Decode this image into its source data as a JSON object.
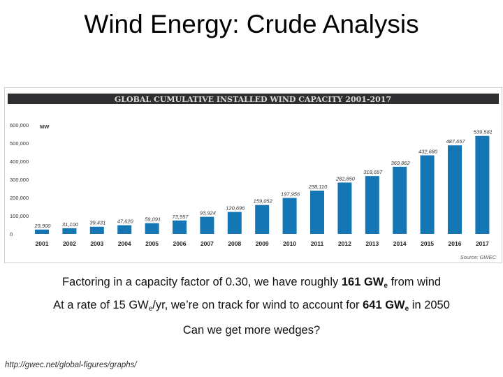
{
  "slide": {
    "title": "Wind Energy: Crude Analysis",
    "line1": {
      "pre": "Factoring in a capacity factor of 0.30, we have roughly ",
      "bold": "161 GW",
      "sub": "e",
      "post": " from wind"
    },
    "line2": {
      "pre": "At a rate of 15 GW",
      "sub1": "e",
      "mid": "/yr, we’re on track for wind to account for ",
      "bold": "641 GW",
      "sub2": "e",
      "post": " in 2050"
    },
    "line3": "Can we get more wedges?",
    "url": "http://gwec.net/global-figures/graphs/"
  },
  "colors": {
    "bar": "#1476b5",
    "banner": "#2f2f31",
    "banner_text": "#d9d9d9",
    "axis_text": "#333333"
  },
  "chart_data": {
    "type": "bar",
    "title": "GLOBAL CUMULATIVE INSTALLED WIND CAPACITY 2001-2017",
    "unit": "MW",
    "source": "Source: GWEC",
    "categories": [
      "2001",
      "2002",
      "2003",
      "2004",
      "2005",
      "2006",
      "2007",
      "2008",
      "2009",
      "2010",
      "2011",
      "2012",
      "2013",
      "2014",
      "2015",
      "2016",
      "2017"
    ],
    "values": [
      23900,
      31100,
      39431,
      47620,
      59091,
      73957,
      93924,
      120696,
      159052,
      197956,
      238110,
      282850,
      318697,
      369862,
      432680,
      487657,
      539581
    ],
    "value_labels": [
      "23,900",
      "31,100",
      "39,431",
      "47,620",
      "59,091",
      "73,957",
      "93,924",
      "120,696",
      "159,052",
      "197,956",
      "238,110",
      "282,850",
      "318,697",
      "369,862",
      "432,680",
      "487,657",
      "539,581"
    ],
    "y_ticks": [
      0,
      100000,
      200000,
      300000,
      400000,
      500000,
      600000
    ],
    "y_tick_labels": [
      "0",
      "100,000",
      "200,000",
      "300,000",
      "400,000",
      "500,000",
      "600,000"
    ],
    "ylim": [
      0,
      600000
    ],
    "grid": false
  }
}
